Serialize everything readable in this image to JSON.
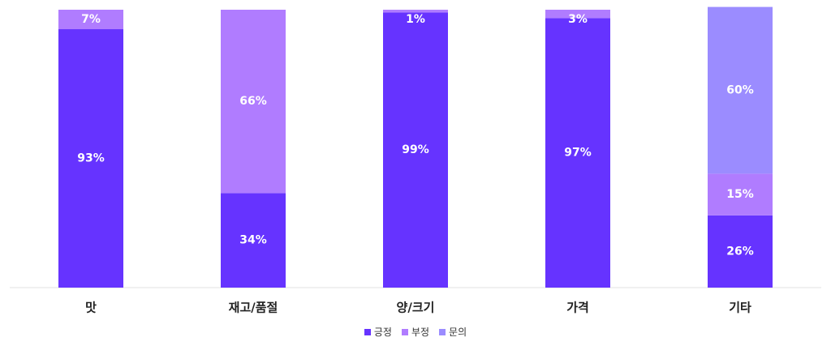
{
  "chart_data": {
    "type": "bar",
    "stacked": true,
    "normalized_percent": true,
    "categories": [
      "맛",
      "재고/품절",
      "양/크기",
      "가격",
      "기타"
    ],
    "series": [
      {
        "name": "긍정",
        "color": "#6633ff",
        "values": [
          93,
          34,
          99,
          97,
          26
        ],
        "labels": [
          "93%",
          "34%",
          "99%",
          "97%",
          "26%"
        ]
      },
      {
        "name": "부정",
        "color": "#b07cff",
        "values": [
          7,
          66,
          1,
          3,
          15
        ],
        "labels": [
          "7%",
          "66%",
          "1%",
          "3%",
          "15%"
        ]
      },
      {
        "name": "문의",
        "color": "#9b8cff",
        "values": [
          0,
          0,
          0,
          0,
          60
        ],
        "labels": [
          "",
          "",
          "",
          "",
          "60%"
        ]
      }
    ],
    "ylim": [
      0,
      100
    ],
    "grid": false,
    "legend_position": "bottom-center"
  }
}
